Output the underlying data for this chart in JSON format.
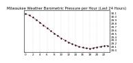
{
  "title": "Milwaukee Weather Barometric Pressure per Hour (Last 24 Hours)",
  "hours": [
    0,
    1,
    2,
    3,
    4,
    5,
    6,
    7,
    8,
    9,
    10,
    11,
    12,
    13,
    14,
    15,
    16,
    17,
    18,
    19,
    20,
    21,
    22,
    23
  ],
  "pressure": [
    30.08,
    30.03,
    29.97,
    29.9,
    29.82,
    29.74,
    29.66,
    29.58,
    29.5,
    29.43,
    29.36,
    29.3,
    29.24,
    29.19,
    29.15,
    29.11,
    29.08,
    29.06,
    29.05,
    29.07,
    29.09,
    29.11,
    29.13,
    29.14
  ],
  "ylim": [
    28.95,
    30.18
  ],
  "ytick_values": [
    29.0,
    29.1,
    29.2,
    29.3,
    29.4,
    29.5,
    29.6,
    29.7,
    29.8,
    29.9,
    30.0,
    30.1
  ],
  "ytick_labels": [
    "29.0",
    "29.1",
    "29.2",
    "29.3",
    "29.4",
    "29.5",
    "29.6",
    "29.7",
    "29.8",
    "29.9",
    "30.0",
    "30.1"
  ],
  "xtick_locs": [
    0,
    2,
    4,
    6,
    8,
    10,
    12,
    14,
    16,
    18,
    20,
    22
  ],
  "xtick_labels": [
    "0",
    "2",
    "4",
    "6",
    "8",
    "10",
    "12",
    "14",
    "16",
    "18",
    "20",
    "22"
  ],
  "line_color": "#dd0000",
  "marker_color": "#111111",
  "grid_color": "#bbbbbb",
  "bg_color": "#ffffff",
  "title_fontsize": 3.8,
  "tick_fontsize": 3.0,
  "marker_size": 1.5,
  "line_width": 0.5,
  "grid_lw": 0.3
}
